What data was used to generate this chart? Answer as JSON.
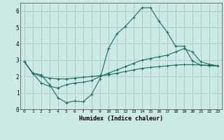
{
  "xlabel": "Humidex (Indice chaleur)",
  "bg_color": "#cce9e5",
  "grid_color": "#aaccca",
  "line_color": "#1a6b60",
  "xlim": [
    -0.5,
    23.5
  ],
  "ylim": [
    0,
    6.5
  ],
  "xticks": [
    0,
    1,
    2,
    3,
    4,
    5,
    6,
    7,
    8,
    9,
    10,
    11,
    12,
    13,
    14,
    15,
    16,
    17,
    18,
    19,
    20,
    21,
    22,
    23
  ],
  "yticks": [
    0,
    1,
    2,
    3,
    4,
    5,
    6
  ],
  "line1_x": [
    0,
    1,
    2,
    3,
    4,
    5,
    6,
    7,
    8,
    9,
    10,
    11,
    12,
    13,
    14,
    15,
    16,
    17,
    18,
    19,
    20,
    21,
    22,
    23
  ],
  "line1_y": [
    2.9,
    2.2,
    2.1,
    1.5,
    0.7,
    0.4,
    0.5,
    0.45,
    0.9,
    1.85,
    3.7,
    4.6,
    5.05,
    5.6,
    6.2,
    6.2,
    5.4,
    4.7,
    3.85,
    3.85,
    2.95,
    2.7,
    2.65,
    2.65
  ],
  "line2_x": [
    0,
    1,
    2,
    3,
    4,
    5,
    6,
    7,
    8,
    9,
    10,
    11,
    12,
    13,
    14,
    15,
    16,
    17,
    18,
    19,
    20,
    21,
    22,
    23
  ],
  "line2_y": [
    2.9,
    2.2,
    2.0,
    1.9,
    1.85,
    1.85,
    1.9,
    1.95,
    2.0,
    2.05,
    2.1,
    2.2,
    2.3,
    2.4,
    2.5,
    2.55,
    2.6,
    2.65,
    2.7,
    2.72,
    2.72,
    2.7,
    2.68,
    2.65
  ],
  "line3_x": [
    0,
    1,
    2,
    3,
    4,
    5,
    6,
    7,
    8,
    9,
    10,
    11,
    12,
    13,
    14,
    15,
    16,
    17,
    18,
    19,
    20,
    21,
    22,
    23
  ],
  "line3_y": [
    2.9,
    2.2,
    1.6,
    1.4,
    1.3,
    1.5,
    1.6,
    1.65,
    1.75,
    2.0,
    2.2,
    2.4,
    2.6,
    2.8,
    3.0,
    3.1,
    3.2,
    3.3,
    3.5,
    3.7,
    3.5,
    2.9,
    2.75,
    2.65
  ]
}
